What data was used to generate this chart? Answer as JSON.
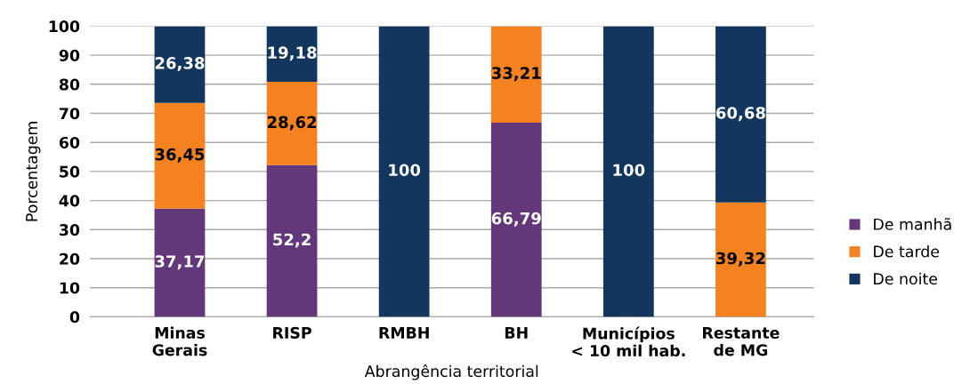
{
  "chart_data": {
    "type": "bar",
    "stacked": true,
    "xlabel": "Abrangência territorial",
    "ylabel": "Porcentagem",
    "categories": [
      "Minas\nGerais",
      "RISP",
      "RMBH",
      "BH",
      "Municípios\n< 10 mil hab.",
      "Restante\nde MG"
    ],
    "series": [
      {
        "name": "De manhã",
        "color": "#63377a",
        "values": [
          37.17,
          52.2,
          null,
          66.79,
          null,
          null
        ],
        "value_labels": [
          "37,17",
          "52,2",
          null,
          "66,79",
          null,
          null
        ]
      },
      {
        "name": "De tarde",
        "color": "#f58220",
        "values": [
          36.45,
          28.62,
          null,
          33.21,
          null,
          39.32
        ],
        "value_labels": [
          "36,45",
          "28,62",
          null,
          "33,21",
          null,
          "39,32"
        ]
      },
      {
        "name": "De noite",
        "color": "#12365e",
        "values": [
          26.38,
          19.18,
          100,
          null,
          100,
          60.68
        ],
        "value_labels": [
          "26,38",
          "19,18",
          "100",
          null,
          "100",
          "60,68"
        ]
      }
    ],
    "ylim": [
      0,
      100
    ],
    "yticks": [
      0,
      10,
      20,
      30,
      40,
      50,
      60,
      70,
      80,
      90,
      100
    ],
    "grid": "y",
    "legend": "right"
  }
}
